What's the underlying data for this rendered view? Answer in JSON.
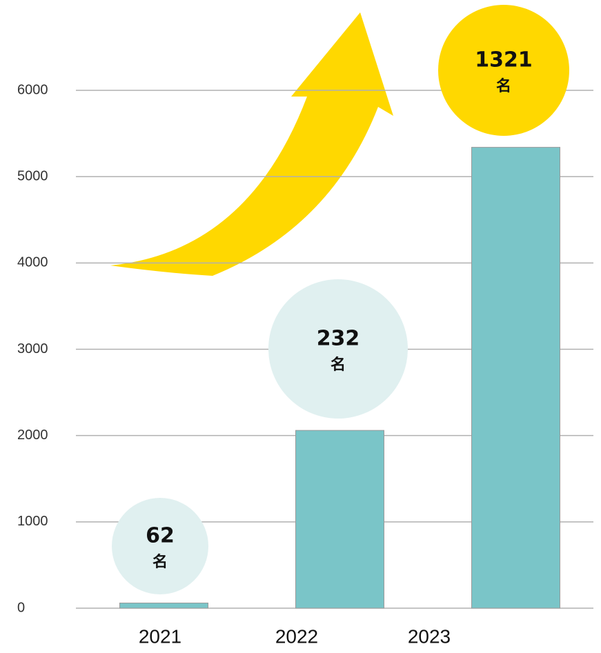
{
  "chart_data": {
    "type": "bar",
    "categories": [
      "2021",
      "2022",
      "2023"
    ],
    "values": [
      60,
      2060,
      5340
    ],
    "color": "#7ac5c8",
    "ylim": [
      0,
      6000
    ],
    "yticks": [
      0,
      1000,
      2000,
      3000,
      4000,
      5000,
      6000
    ],
    "grid": true,
    "annotations": [
      {
        "label": "62",
        "suffix": "名",
        "color": "#e0f0f0"
      },
      {
        "label": "232",
        "suffix": "名",
        "color": "#e0f0f0"
      },
      {
        "label": "1321",
        "suffix": "名",
        "color": "#ffd800"
      }
    ]
  }
}
